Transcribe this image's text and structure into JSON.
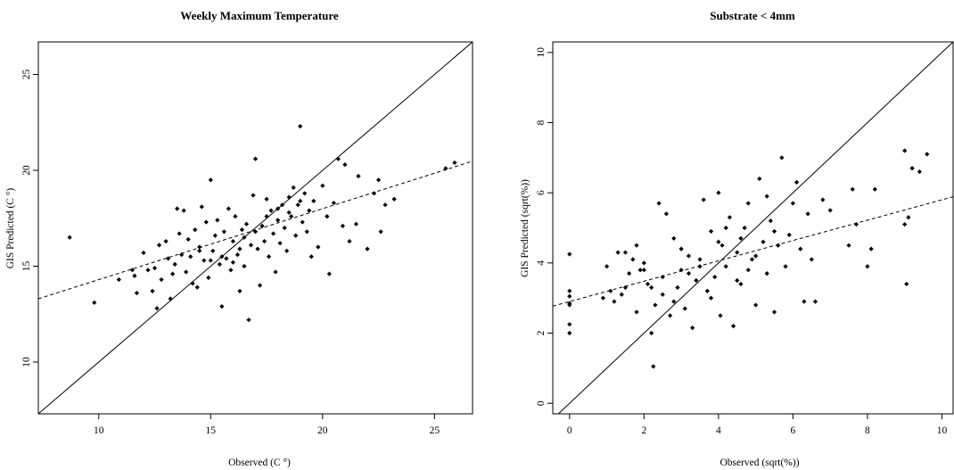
{
  "chart_data": [
    {
      "type": "scatter",
      "title": "Weekly Maximum Temperature",
      "xlabel": "Observed (C °)",
      "ylabel": "GIS Predicted (C °)",
      "xlim": [
        7.3,
        26.7
      ],
      "ylim": [
        7.3,
        26.7
      ],
      "xticks": [
        "10",
        "15",
        "20",
        "25"
      ],
      "yticks": [
        "10",
        "15",
        "20",
        "25"
      ],
      "legend": "none",
      "grid": false,
      "lines": [
        {
          "kind": "identity",
          "style": "solid",
          "slope": 1,
          "intercept": 0
        },
        {
          "kind": "fit",
          "style": "dashed",
          "slope": 0.37,
          "intercept": 10.6
        }
      ],
      "points": [
        [
          8.7,
          16.5
        ],
        [
          9.8,
          13.1
        ],
        [
          10.9,
          14.3
        ],
        [
          11.5,
          14.8
        ],
        [
          11.6,
          14.5
        ],
        [
          11.7,
          13.6
        ],
        [
          12.0,
          15.7
        ],
        [
          12.2,
          14.8
        ],
        [
          12.4,
          13.7
        ],
        [
          12.5,
          14.9
        ],
        [
          12.6,
          12.8
        ],
        [
          12.7,
          16.1
        ],
        [
          12.8,
          14.3
        ],
        [
          13.0,
          16.3
        ],
        [
          13.1,
          15.4
        ],
        [
          13.2,
          13.3
        ],
        [
          13.3,
          14.6
        ],
        [
          13.4,
          15.1
        ],
        [
          13.5,
          18.0
        ],
        [
          13.6,
          16.7
        ],
        [
          13.7,
          15.6
        ],
        [
          13.8,
          17.9
        ],
        [
          13.9,
          14.7
        ],
        [
          14.0,
          16.4
        ],
        [
          14.1,
          15.5
        ],
        [
          14.2,
          14.1
        ],
        [
          14.3,
          16.9
        ],
        [
          14.4,
          13.9
        ],
        [
          14.5,
          16.0
        ],
        [
          14.6,
          18.1
        ],
        [
          14.7,
          15.3
        ],
        [
          14.8,
          17.3
        ],
        [
          14.9,
          14.4
        ],
        [
          15.0,
          19.5
        ],
        [
          15.1,
          15.8
        ],
        [
          15.2,
          16.6
        ],
        [
          15.3,
          17.4
        ],
        [
          15.4,
          15.1
        ],
        [
          15.5,
          12.9
        ],
        [
          15.6,
          16.8
        ],
        [
          15.7,
          15.4
        ],
        [
          15.8,
          18.0
        ],
        [
          15.9,
          14.8
        ],
        [
          16.0,
          16.3
        ],
        [
          16.1,
          17.6
        ],
        [
          16.2,
          15.6
        ],
        [
          16.3,
          13.7
        ],
        [
          16.4,
          16.9
        ],
        [
          16.5,
          15.0
        ],
        [
          16.6,
          17.2
        ],
        [
          16.7,
          12.2
        ],
        [
          16.8,
          16.1
        ],
        [
          16.9,
          18.7
        ],
        [
          17.0,
          20.6
        ],
        [
          17.1,
          15.9
        ],
        [
          17.2,
          14.0
        ],
        [
          17.3,
          17.1
        ],
        [
          17.4,
          16.3
        ],
        [
          17.5,
          18.5
        ],
        [
          17.6,
          15.5
        ],
        [
          17.7,
          17.9
        ],
        [
          17.8,
          16.7
        ],
        [
          17.9,
          14.7
        ],
        [
          18.0,
          17.4
        ],
        [
          18.1,
          16.2
        ],
        [
          18.2,
          18.2
        ],
        [
          18.3,
          17.0
        ],
        [
          18.4,
          15.8
        ],
        [
          18.5,
          18.6
        ],
        [
          18.6,
          17.6
        ],
        [
          18.7,
          19.1
        ],
        [
          18.8,
          16.6
        ],
        [
          18.9,
          18.2
        ],
        [
          19.0,
          22.3
        ],
        [
          19.1,
          17.3
        ],
        [
          19.2,
          18.8
        ],
        [
          19.3,
          16.8
        ],
        [
          19.4,
          17.9
        ],
        [
          19.5,
          15.5
        ],
        [
          19.6,
          18.4
        ],
        [
          19.8,
          16.0
        ],
        [
          20.0,
          19.2
        ],
        [
          20.2,
          17.6
        ],
        [
          20.3,
          14.6
        ],
        [
          20.5,
          18.3
        ],
        [
          20.7,
          20.6
        ],
        [
          20.9,
          17.1
        ],
        [
          21.0,
          20.3
        ],
        [
          21.2,
          16.3
        ],
        [
          21.5,
          17.2
        ],
        [
          21.6,
          19.7
        ],
        [
          22.0,
          15.9
        ],
        [
          22.3,
          18.8
        ],
        [
          22.5,
          19.5
        ],
        [
          22.6,
          16.8
        ],
        [
          22.8,
          18.2
        ],
        [
          23.2,
          18.5
        ],
        [
          25.5,
          20.1
        ],
        [
          25.9,
          20.4
        ],
        [
          16.0,
          15.2
        ],
        [
          15.5,
          15.5
        ],
        [
          16.5,
          16.5
        ],
        [
          17.0,
          16.8
        ],
        [
          18.5,
          17.8
        ],
        [
          14.5,
          15.8
        ],
        [
          15.0,
          15.3
        ],
        [
          17.5,
          17.6
        ],
        [
          19.0,
          18.4
        ],
        [
          16.3,
          15.9
        ],
        [
          18.0,
          18.0
        ]
      ]
    },
    {
      "type": "scatter",
      "title": "Substrate < 4mm",
      "xlabel": "Observed (sqrt(%))",
      "ylabel": "GIS Predicted (sqrt(%))",
      "xlim": [
        -0.45,
        10.3
      ],
      "ylim": [
        -0.3,
        10.3
      ],
      "xticks": [
        "0",
        "2",
        "4",
        "6",
        "8",
        "10"
      ],
      "yticks": [
        "0",
        "2",
        "4",
        "6",
        "8",
        "10"
      ],
      "legend": "none",
      "grid": false,
      "lines": [
        {
          "kind": "identity",
          "style": "solid",
          "slope": 1,
          "intercept": 0
        },
        {
          "kind": "fit",
          "style": "dashed",
          "slope": 0.29,
          "intercept": 2.9
        }
      ],
      "points": [
        [
          0.0,
          4.25
        ],
        [
          0.0,
          3.2
        ],
        [
          0.0,
          3.05
        ],
        [
          0.0,
          2.85
        ],
        [
          0.0,
          2.25
        ],
        [
          0.0,
          2.0
        ],
        [
          0.0,
          2.8
        ],
        [
          0.9,
          3.0
        ],
        [
          1.0,
          3.9
        ],
        [
          1.1,
          3.2
        ],
        [
          1.2,
          2.9
        ],
        [
          1.3,
          4.3
        ],
        [
          1.4,
          3.1
        ],
        [
          1.5,
          3.3
        ],
        [
          1.6,
          3.7
        ],
        [
          1.7,
          4.1
        ],
        [
          1.8,
          2.6
        ],
        [
          1.9,
          3.8
        ],
        [
          2.0,
          4.0
        ],
        [
          2.1,
          3.4
        ],
        [
          2.2,
          2.0
        ],
        [
          2.25,
          1.05
        ],
        [
          2.3,
          2.8
        ],
        [
          2.4,
          5.7
        ],
        [
          2.5,
          3.6
        ],
        [
          2.6,
          5.4
        ],
        [
          2.7,
          2.5
        ],
        [
          2.8,
          4.7
        ],
        [
          2.9,
          3.3
        ],
        [
          3.0,
          3.8
        ],
        [
          3.1,
          2.7
        ],
        [
          3.2,
          4.2
        ],
        [
          3.3,
          2.15
        ],
        [
          3.4,
          3.5
        ],
        [
          3.5,
          4.1
        ],
        [
          3.6,
          5.8
        ],
        [
          3.7,
          3.2
        ],
        [
          3.8,
          4.9
        ],
        [
          3.9,
          3.6
        ],
        [
          4.0,
          6.0
        ],
        [
          4.05,
          2.5
        ],
        [
          4.1,
          4.5
        ],
        [
          4.2,
          3.9
        ],
        [
          4.3,
          5.3
        ],
        [
          4.4,
          2.2
        ],
        [
          4.5,
          4.3
        ],
        [
          4.6,
          3.4
        ],
        [
          4.7,
          5.0
        ],
        [
          4.8,
          3.8
        ],
        [
          4.9,
          4.1
        ],
        [
          5.0,
          2.8
        ],
        [
          5.1,
          6.4
        ],
        [
          5.2,
          4.6
        ],
        [
          5.3,
          3.7
        ],
        [
          5.4,
          5.2
        ],
        [
          5.5,
          2.6
        ],
        [
          5.6,
          4.5
        ],
        [
          5.7,
          7.0
        ],
        [
          5.8,
          3.9
        ],
        [
          5.9,
          4.8
        ],
        [
          6.0,
          5.7
        ],
        [
          6.1,
          6.3
        ],
        [
          6.3,
          2.9
        ],
        [
          6.4,
          5.4
        ],
        [
          6.5,
          4.1
        ],
        [
          6.6,
          2.9
        ],
        [
          6.8,
          5.8
        ],
        [
          7.0,
          5.5
        ],
        [
          7.5,
          4.5
        ],
        [
          7.6,
          6.1
        ],
        [
          7.7,
          5.1
        ],
        [
          8.0,
          3.9
        ],
        [
          8.1,
          4.4
        ],
        [
          8.2,
          6.1
        ],
        [
          9.0,
          7.2
        ],
        [
          9.0,
          5.1
        ],
        [
          9.05,
          3.4
        ],
        [
          9.1,
          5.3
        ],
        [
          9.2,
          6.7
        ],
        [
          9.4,
          6.6
        ],
        [
          9.6,
          7.1
        ],
        [
          1.5,
          4.3
        ],
        [
          2.0,
          3.8
        ],
        [
          2.5,
          3.1
        ],
        [
          3.0,
          4.4
        ],
        [
          3.5,
          3.9
        ],
        [
          4.0,
          4.6
        ],
        [
          4.5,
          3.5
        ],
        [
          5.0,
          4.2
        ],
        [
          5.5,
          4.9
        ],
        [
          2.8,
          2.9
        ],
        [
          3.2,
          3.7
        ],
        [
          3.8,
          3.0
        ],
        [
          4.2,
          5.0
        ],
        [
          4.6,
          4.7
        ],
        [
          5.3,
          5.9
        ],
        [
          1.8,
          4.5
        ],
        [
          2.2,
          3.3
        ],
        [
          6.2,
          4.4
        ],
        [
          4.8,
          5.7
        ]
      ]
    }
  ]
}
